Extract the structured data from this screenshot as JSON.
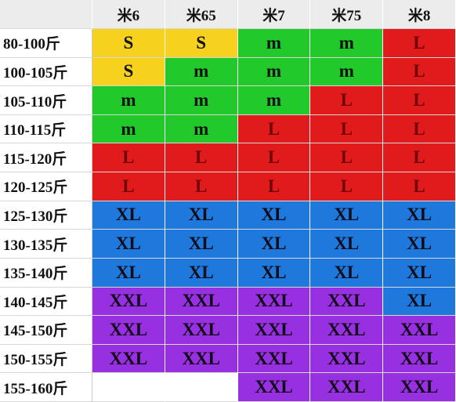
{
  "table": {
    "header": [
      "米6",
      "米65",
      "米7",
      "米75",
      "米8"
    ],
    "rows": [
      {
        "label": "80-100斤",
        "cells": [
          "S",
          "S",
          "m",
          "m",
          "L"
        ]
      },
      {
        "label": "100-105斤",
        "cells": [
          "S",
          "m",
          "m",
          "m",
          "L"
        ]
      },
      {
        "label": "105-110斤",
        "cells": [
          "m",
          "m",
          "m",
          "L",
          "L"
        ]
      },
      {
        "label": "110-115斤",
        "cells": [
          "m",
          "m",
          "L",
          "L",
          "L"
        ]
      },
      {
        "label": "115-120斤",
        "cells": [
          "L",
          "L",
          "L",
          "L",
          "L"
        ]
      },
      {
        "label": "120-125斤",
        "cells": [
          "L",
          "L",
          "L",
          "L",
          "L"
        ]
      },
      {
        "label": "125-130斤",
        "cells": [
          "XL",
          "XL",
          "XL",
          "XL",
          "XL"
        ]
      },
      {
        "label": "130-135斤",
        "cells": [
          "XL",
          "XL",
          "XL",
          "XL",
          "XL"
        ]
      },
      {
        "label": "135-140斤",
        "cells": [
          "XL",
          "XL",
          "XL",
          "XL",
          "XL"
        ]
      },
      {
        "label": "140-145斤",
        "cells": [
          "XXL",
          "XXL",
          "XXL",
          "XXL",
          "XL"
        ]
      },
      {
        "label": "145-150斤",
        "cells": [
          "XXL",
          "XXL",
          "XXL",
          "XXL",
          "XXL"
        ]
      },
      {
        "label": "150-155斤",
        "cells": [
          "XXL",
          "XXL",
          "XXL",
          "XXL",
          "XXL"
        ]
      },
      {
        "label": "155-160斤",
        "cells": [
          null,
          null,
          "XXL",
          "XXL",
          "XXL"
        ]
      }
    ],
    "styles": {
      "S": {
        "bg": "#f6d21e",
        "fg": "#111111"
      },
      "m": {
        "bg": "#21c92a",
        "fg": "#111111"
      },
      "L": {
        "bg": "#e11b1b",
        "fg": "#6e0505"
      },
      "XL": {
        "bg": "#1f78dc",
        "fg": "#0d0d1a"
      },
      "XXL": {
        "bg": "#9730e0",
        "fg": "#120a18"
      }
    }
  }
}
